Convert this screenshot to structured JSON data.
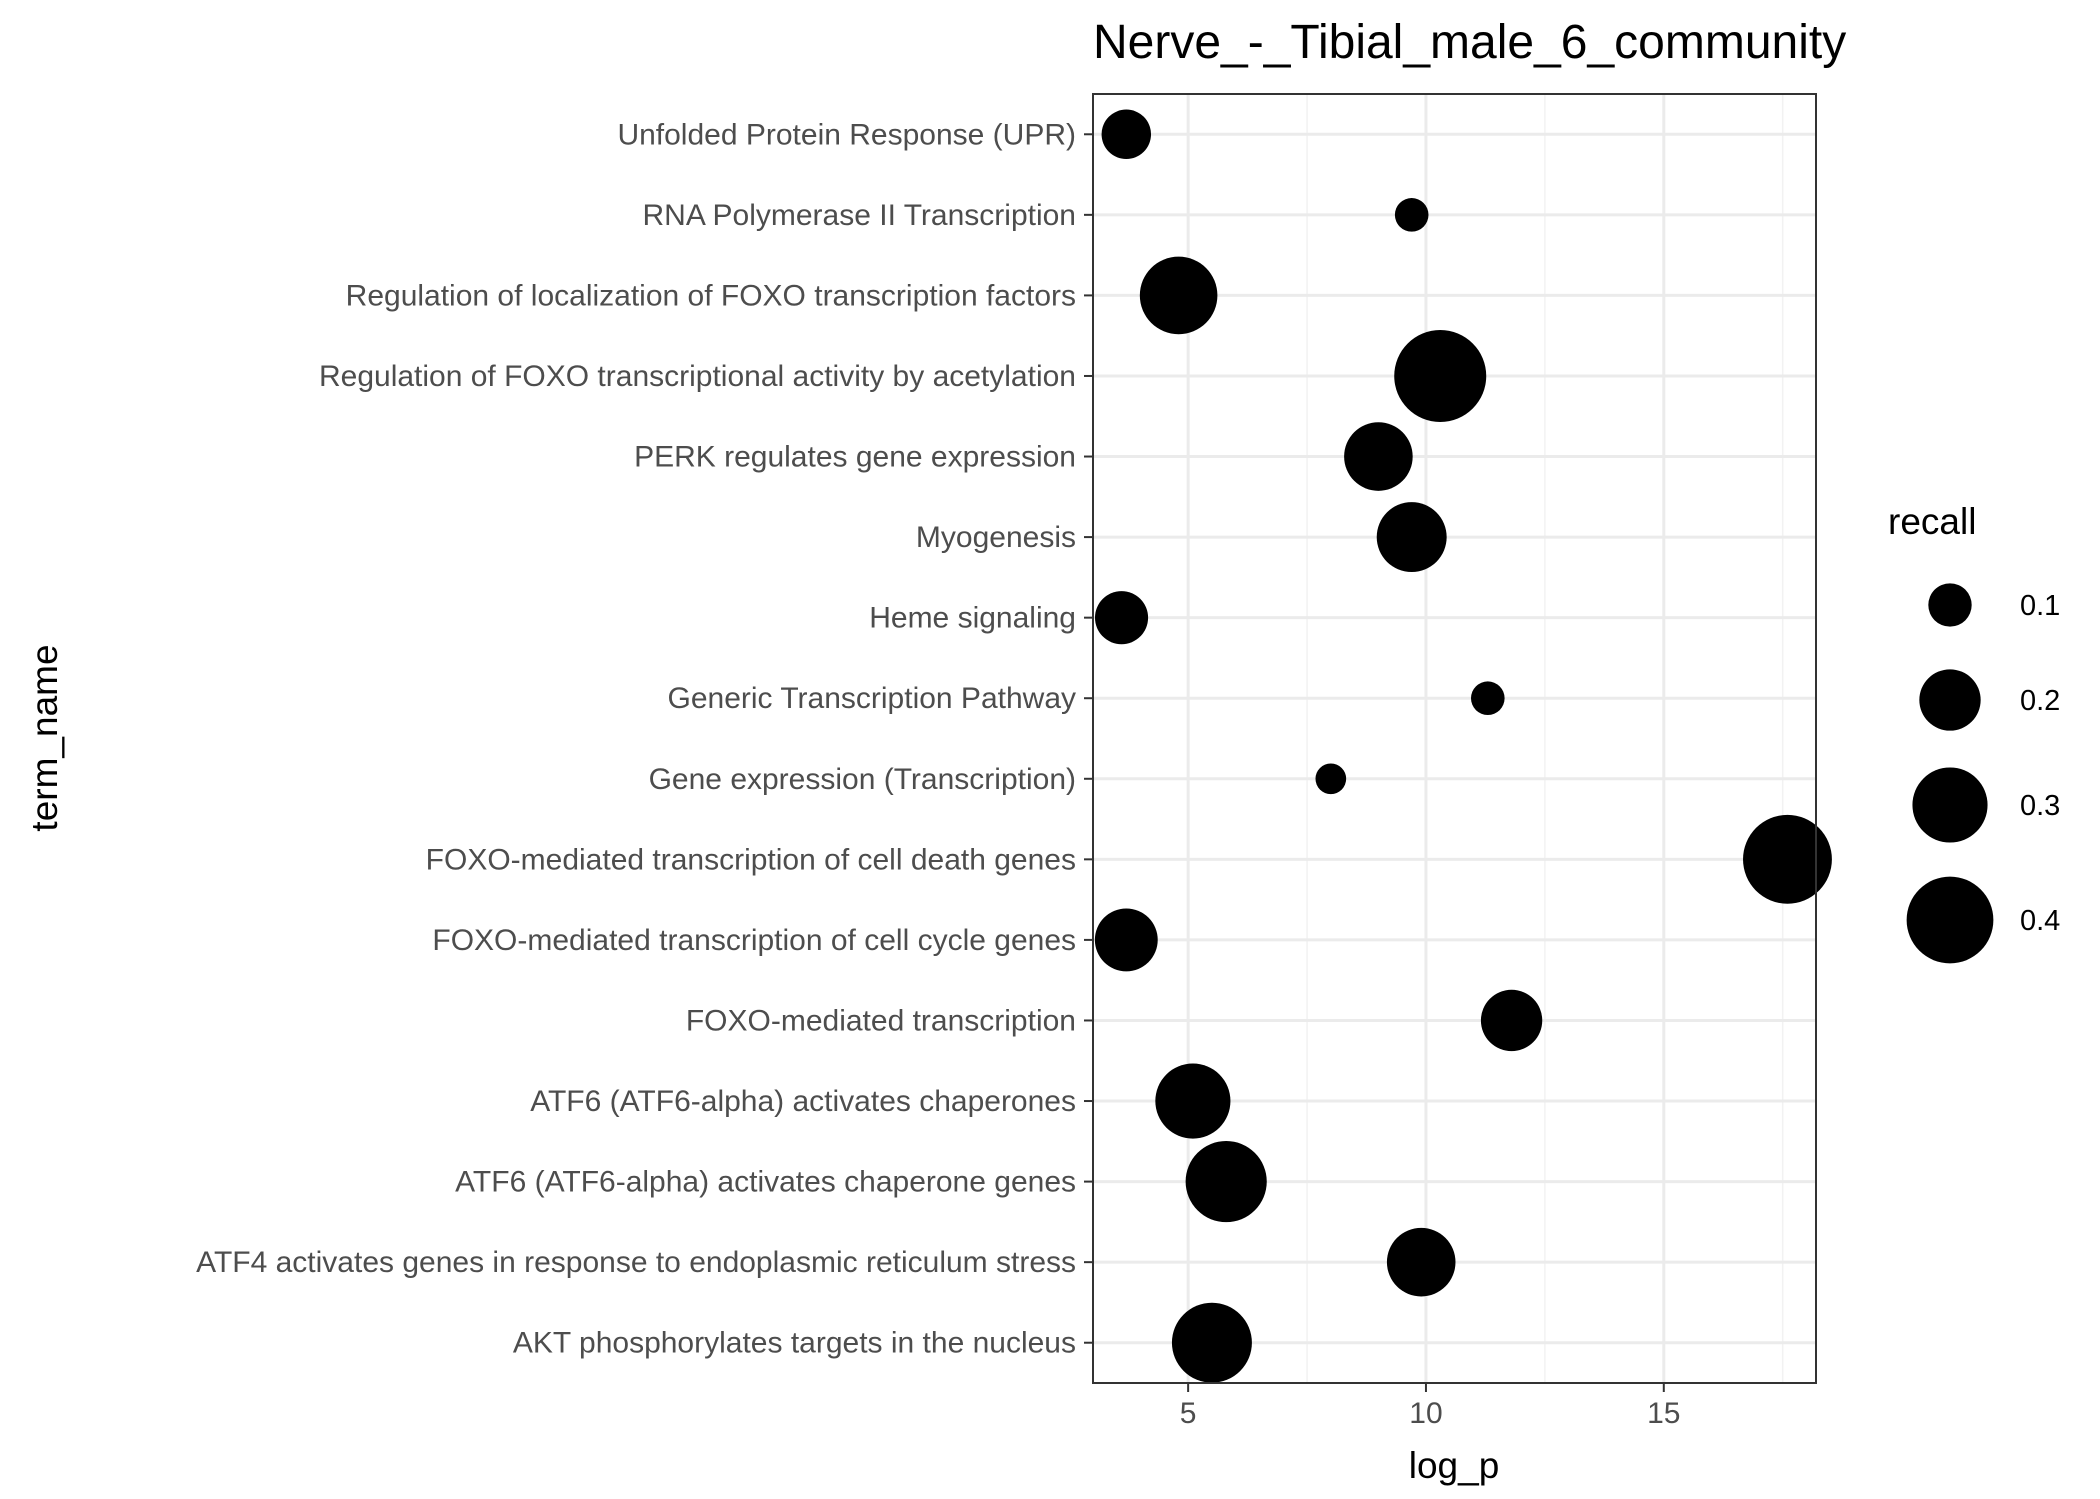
{
  "chart_data": {
    "type": "scatter",
    "title": "Nerve_-_Tibial_male_6_community",
    "xlabel": "log_p",
    "ylabel": "term_name",
    "xlim": [
      3,
      18.2
    ],
    "x_ticks": [
      5,
      10,
      15
    ],
    "x_tick_labels": [
      "5",
      "10",
      "15"
    ],
    "grid": true,
    "legend_placement": "right",
    "size_legend": {
      "title": "recall",
      "levels": [
        0.1,
        0.2,
        0.3,
        0.4
      ],
      "labels": [
        "0.1",
        "0.2",
        "0.3",
        "0.4"
      ]
    },
    "categories": [
      "AKT phosphorylates targets in the nucleus",
      "ATF4 activates genes in response to endoplasmic reticulum  stress",
      "ATF6 (ATF6-alpha) activates chaperone genes",
      "ATF6 (ATF6-alpha) activates chaperones",
      "FOXO-mediated transcription",
      "FOXO-mediated transcription of cell cycle genes",
      "FOXO-mediated transcription of cell death genes",
      "Gene expression (Transcription)",
      "Generic Transcription Pathway",
      "Heme signaling",
      "Myogenesis",
      "PERK regulates gene expression",
      "Regulation of FOXO transcriptional activity by acetylation",
      "Regulation of localization of FOXO transcription factors",
      "RNA Polymerase II Transcription",
      "Unfolded Protein Response (UPR)"
    ],
    "points": [
      {
        "term": "AKT phosphorylates targets in the nucleus",
        "log_p": 5.5,
        "recall": 0.34
      },
      {
        "term": "ATF4 activates genes in response to endoplasmic reticulum  stress",
        "log_p": 9.9,
        "recall": 0.25
      },
      {
        "term": "ATF6 (ATF6-alpha) activates chaperone genes",
        "log_p": 5.8,
        "recall": 0.35
      },
      {
        "term": "ATF6 (ATF6-alpha) activates chaperones",
        "log_p": 5.1,
        "recall": 0.3
      },
      {
        "term": "FOXO-mediated transcription",
        "log_p": 11.8,
        "recall": 0.2
      },
      {
        "term": "FOXO-mediated transcription of cell cycle genes",
        "log_p": 3.7,
        "recall": 0.21
      },
      {
        "term": "FOXO-mediated transcription of cell death genes",
        "log_p": 17.6,
        "recall": 0.42
      },
      {
        "term": "Gene expression (Transcription)",
        "log_p": 8.0,
        "recall": 0.05
      },
      {
        "term": "Generic Transcription Pathway",
        "log_p": 11.3,
        "recall": 0.06
      },
      {
        "term": "Heme signaling",
        "log_p": 3.6,
        "recall": 0.15
      },
      {
        "term": "Myogenesis",
        "log_p": 9.7,
        "recall": 0.26
      },
      {
        "term": "PERK regulates gene expression",
        "log_p": 9.0,
        "recall": 0.25
      },
      {
        "term": "Regulation of FOXO transcriptional activity by acetylation",
        "log_p": 10.3,
        "recall": 0.45
      },
      {
        "term": "Regulation of localization of FOXO transcription factors",
        "log_p": 4.8,
        "recall": 0.32
      },
      {
        "term": "RNA Polymerase II Transcription",
        "log_p": 9.7,
        "recall": 0.06
      },
      {
        "term": "Unfolded Protein Response (UPR)",
        "log_p": 3.7,
        "recall": 0.13
      }
    ]
  }
}
